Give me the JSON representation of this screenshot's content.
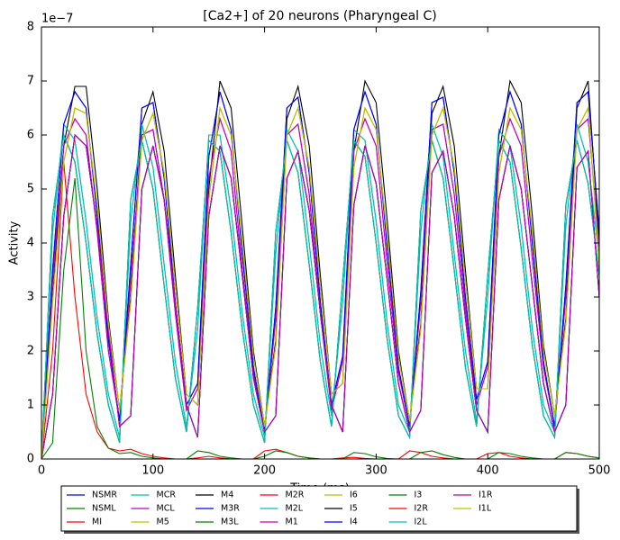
{
  "chart_data": {
    "type": "line",
    "title": "[Ca2+] of 20 neurons (Pharyngeal C)",
    "xlabel": "Time (ms)",
    "ylabel": "Activity",
    "y_offset_text": "1e−7",
    "xlim": [
      0,
      500
    ],
    "xticks": [
      0,
      100,
      200,
      300,
      400,
      500
    ],
    "ylim": [
      0,
      8
    ],
    "yticks": [
      0,
      1,
      2,
      3,
      4,
      5,
      6,
      7,
      8
    ],
    "legend": "lower center",
    "x": [
      0,
      10,
      20,
      30,
      40,
      50,
      60,
      70,
      80,
      90,
      100,
      110,
      120,
      130,
      140,
      150,
      160,
      170,
      180,
      190,
      200,
      210,
      220,
      230,
      240,
      250,
      260,
      270,
      280,
      290,
      300,
      310,
      320,
      330,
      340,
      350,
      360,
      370,
      380,
      390,
      400,
      410,
      420,
      430,
      440,
      450,
      460,
      470,
      480,
      490,
      500
    ],
    "series": [
      {
        "name": "NSMR",
        "color": "#0000ff",
        "values": [
          0,
          3.5,
          6.2,
          6.8,
          6.5,
          4.5,
          2.2,
          0.7,
          3.6,
          6.5,
          6.6,
          5.2,
          2.9,
          1.0,
          1.4,
          5.6,
          6.8,
          6.1,
          3.8,
          1.7,
          0.5,
          2.8,
          6.5,
          6.7,
          5.3,
          2.9,
          1.0,
          1.9,
          6.1,
          6.8,
          6.2,
          3.9,
          1.7,
          0.6,
          3.1,
          6.6,
          6.7,
          5.3,
          3.0,
          1.1,
          1.8,
          6.0,
          6.8,
          6.2,
          4.0,
          1.8,
          0.6,
          3.2,
          6.6,
          6.8,
          4.2
        ]
      },
      {
        "name": "NSML",
        "color": "#008000",
        "values": [
          0,
          4.5,
          6.0,
          5.5,
          4.0,
          2.3,
          1.0,
          0.3,
          4.8,
          5.9,
          5.0,
          3.2,
          1.5,
          0.5,
          2.8,
          5.9,
          5.7,
          4.2,
          2.4,
          1.0,
          0.3,
          4.2,
          5.9,
          5.3,
          3.6,
          1.8,
          0.6,
          3.3,
          5.9,
          5.6,
          4.0,
          2.2,
          0.8,
          0.4,
          4.6,
          5.9,
          5.2,
          3.5,
          1.7,
          0.6,
          3.4,
          5.9,
          5.5,
          3.9,
          2.1,
          0.8,
          0.4,
          4.7,
          5.9,
          5.1,
          3.4
        ]
      },
      {
        "name": "MI",
        "color": "#ff0000",
        "values": [
          0,
          2.0,
          5.5,
          3.0,
          1.2,
          0.5,
          0.2,
          0.15,
          0.18,
          0.1,
          0.05,
          0.02,
          0,
          0,
          0.02,
          0.05,
          0.02,
          0,
          0,
          0,
          0.15,
          0.18,
          0.12,
          0.05,
          0.02,
          0,
          0,
          0.02,
          0.03,
          0.01,
          0,
          0,
          0,
          0.15,
          0.12,
          0.05,
          0.02,
          0,
          0,
          0,
          0.1,
          0.12,
          0.05,
          0.02,
          0,
          0,
          0,
          0.12,
          0.1,
          0.05,
          0.02
        ]
      },
      {
        "name": "MCR",
        "color": "#00bfbf",
        "values": [
          0,
          4.2,
          6.2,
          5.9,
          4.4,
          2.6,
          1.2,
          0.4,
          4.4,
          6.2,
          5.4,
          3.6,
          1.8,
          0.6,
          2.4,
          6.0,
          6.0,
          4.6,
          2.7,
          1.2,
          0.4,
          3.8,
          6.1,
          5.7,
          4.0,
          2.1,
          0.8,
          2.9,
          6.1,
          5.9,
          4.4,
          2.5,
          1.0,
          0.5,
          4.2,
          6.2,
          5.6,
          3.8,
          2.0,
          0.7,
          3.0,
          6.1,
          5.8,
          4.3,
          2.4,
          1.0,
          0.5,
          4.3,
          6.2,
          5.5,
          3.7
        ]
      },
      {
        "name": "MCL",
        "color": "#bf00bf",
        "values": [
          0,
          3.3,
          5.8,
          6.3,
          6.0,
          4.2,
          2.0,
          0.7,
          3.3,
          6.0,
          6.1,
          4.8,
          2.7,
          0.9,
          1.3,
          5.2,
          6.3,
          5.7,
          3.5,
          1.6,
          0.5,
          2.6,
          6.0,
          6.2,
          4.9,
          2.7,
          0.9,
          1.8,
          5.7,
          6.3,
          5.8,
          3.6,
          1.6,
          0.6,
          2.9,
          6.1,
          6.2,
          4.9,
          2.8,
          1.0,
          1.7,
          5.6,
          6.3,
          5.8,
          3.7,
          1.7,
          0.6,
          3.0,
          6.1,
          6.3,
          3.9
        ]
      },
      {
        "name": "M5",
        "color": "#bfbf00",
        "values": [
          0,
          2.9,
          5.5,
          6.5,
          6.4,
          4.7,
          2.5,
          0.9,
          2.9,
          5.9,
          6.4,
          5.3,
          3.2,
          1.2,
          1.0,
          4.8,
          6.5,
          6.0,
          4.0,
          1.9,
          0.6,
          2.1,
          6.0,
          6.5,
          5.4,
          3.2,
          1.2,
          1.4,
          5.4,
          6.5,
          6.1,
          4.1,
          1.9,
          0.7,
          2.4,
          6.0,
          6.5,
          5.4,
          3.3,
          1.3,
          1.3,
          5.3,
          6.5,
          6.1,
          4.2,
          2.0,
          0.8,
          2.5,
          6.1,
          6.5,
          3.6
        ]
      },
      {
        "name": "M4",
        "color": "#000000",
        "values": [
          0,
          3.0,
          5.8,
          6.9,
          6.9,
          5.0,
          2.6,
          0.9,
          3.0,
          6.2,
          6.8,
          5.7,
          3.4,
          1.2,
          1.0,
          5.0,
          7.0,
          6.5,
          4.3,
          2.0,
          0.6,
          2.2,
          6.3,
          6.9,
          5.8,
          3.4,
          1.2,
          1.4,
          5.7,
          7.0,
          6.6,
          4.4,
          2.0,
          0.7,
          2.5,
          6.4,
          6.9,
          5.8,
          3.5,
          1.3,
          1.3,
          5.6,
          7.0,
          6.6,
          4.5,
          2.1,
          0.8,
          2.6,
          6.5,
          7.0,
          4.0
        ]
      },
      {
        "name": "M3R",
        "color": "#0000ff",
        "values": [
          0,
          1.2,
          4.5,
          6.0,
          5.8,
          4.3,
          2.4,
          0.6,
          0.8,
          5.0,
          5.8,
          4.8,
          2.9,
          1.0,
          0.4,
          4.5,
          5.8,
          5.2,
          3.4,
          1.5,
          0.5,
          0.8,
          5.2,
          5.7,
          4.6,
          2.7,
          1.0,
          0.5,
          4.7,
          5.8,
          5.1,
          3.3,
          1.4,
          0.5,
          0.9,
          5.3,
          5.7,
          4.5,
          2.6,
          0.9,
          0.5,
          4.8,
          5.8,
          5.0,
          3.2,
          1.4,
          0.5,
          1.0,
          5.4,
          5.7,
          3.0
        ]
      },
      {
        "name": "M3L",
        "color": "#008000",
        "values": [
          0,
          0.3,
          3.5,
          5.2,
          2.0,
          0.6,
          0.2,
          0.1,
          0.12,
          0.05,
          0.02,
          0,
          0,
          0,
          0.15,
          0.12,
          0.05,
          0.02,
          0,
          0,
          0.05,
          0.15,
          0.12,
          0.05,
          0.02,
          0,
          0,
          0,
          0.12,
          0.1,
          0.04,
          0.01,
          0,
          0,
          0.12,
          0.15,
          0.08,
          0.03,
          0,
          0,
          0,
          0.12,
          0.1,
          0.05,
          0.02,
          0,
          0,
          0.12,
          0.1,
          0.05,
          0.02
        ]
      },
      {
        "name": "M2R",
        "color": "#ff0000",
        "values": [
          0,
          0,
          0,
          0,
          0,
          0,
          0,
          0,
          0,
          0,
          0,
          0,
          0,
          0,
          0,
          0,
          0,
          0,
          0,
          0,
          0,
          0,
          0,
          0,
          0,
          0,
          0,
          0,
          0,
          0,
          0,
          0,
          0,
          0,
          0,
          0,
          0,
          0,
          0,
          0,
          0,
          0,
          0,
          0,
          0,
          0,
          0,
          0,
          0,
          0,
          0
        ]
      },
      {
        "name": "M2L",
        "color": "#00bfbf",
        "values": [
          0,
          4.2,
          6.2,
          5.9,
          4.4,
          2.6,
          1.2,
          0.4,
          4.4,
          6.2,
          5.4,
          3.6,
          1.8,
          0.6,
          2.4,
          6.0,
          6.0,
          4.6,
          2.7,
          1.2,
          0.4,
          3.8,
          6.1,
          5.7,
          4.0,
          2.1,
          0.8,
          2.9,
          6.1,
          5.9,
          4.4,
          2.5,
          1.0,
          0.5,
          4.2,
          6.2,
          5.6,
          3.8,
          2.0,
          0.7,
          3.0,
          6.1,
          5.8,
          4.3,
          2.4,
          1.0,
          0.5,
          4.3,
          6.2,
          5.5,
          3.7
        ]
      },
      {
        "name": "M1",
        "color": "#bf00bf",
        "values": [
          0,
          3.3,
          5.8,
          6.3,
          6.0,
          4.2,
          2.0,
          0.7,
          3.3,
          6.0,
          6.1,
          4.8,
          2.7,
          0.9,
          1.3,
          5.2,
          6.3,
          5.7,
          3.5,
          1.6,
          0.5,
          2.6,
          6.0,
          6.2,
          4.9,
          2.7,
          0.9,
          1.8,
          5.7,
          6.3,
          5.8,
          3.6,
          1.6,
          0.6,
          2.9,
          6.1,
          6.2,
          4.9,
          2.8,
          1.0,
          1.7,
          5.6,
          6.3,
          5.8,
          3.7,
          1.7,
          0.6,
          3.0,
          6.1,
          6.3,
          3.9
        ]
      },
      {
        "name": "I6",
        "color": "#bfbf00",
        "values": [
          0,
          2.9,
          5.5,
          6.5,
          6.4,
          4.7,
          2.5,
          0.9,
          2.9,
          5.9,
          6.4,
          5.3,
          3.2,
          1.2,
          1.0,
          4.8,
          6.5,
          6.0,
          4.0,
          1.9,
          0.6,
          2.1,
          6.0,
          6.5,
          5.4,
          3.2,
          1.2,
          1.4,
          5.4,
          6.5,
          6.1,
          4.1,
          1.9,
          0.7,
          2.4,
          6.0,
          6.5,
          5.4,
          3.3,
          1.3,
          1.3,
          5.3,
          6.5,
          6.1,
          4.2,
          2.0,
          0.8,
          2.5,
          6.1,
          6.5,
          3.6
        ]
      },
      {
        "name": "I5",
        "color": "#000000",
        "values": [
          0,
          1.2,
          4.5,
          6.0,
          5.8,
          4.3,
          2.4,
          0.6,
          0.8,
          5.0,
          5.8,
          4.8,
          2.9,
          1.0,
          0.4,
          4.5,
          5.8,
          5.2,
          3.4,
          1.5,
          0.5,
          0.8,
          5.2,
          5.7,
          4.6,
          2.7,
          1.0,
          0.5,
          4.7,
          5.8,
          5.1,
          3.3,
          1.4,
          0.5,
          0.9,
          5.3,
          5.7,
          4.5,
          2.6,
          0.9,
          0.5,
          4.8,
          5.8,
          5.0,
          3.2,
          1.4,
          0.5,
          1.0,
          5.4,
          5.7,
          3.0
        ]
      },
      {
        "name": "I4",
        "color": "#0000ff",
        "values": [
          0,
          3.5,
          6.2,
          6.8,
          6.5,
          4.5,
          2.2,
          0.7,
          3.6,
          6.5,
          6.6,
          5.2,
          2.9,
          1.0,
          1.4,
          5.6,
          6.8,
          6.1,
          3.8,
          1.7,
          0.5,
          2.8,
          6.5,
          6.7,
          5.3,
          2.9,
          1.0,
          1.9,
          6.1,
          6.8,
          6.2,
          3.9,
          1.7,
          0.6,
          3.1,
          6.6,
          6.7,
          5.3,
          3.0,
          1.1,
          1.8,
          6.0,
          6.8,
          6.2,
          4.0,
          1.8,
          0.6,
          3.2,
          6.6,
          6.8,
          4.2
        ]
      },
      {
        "name": "I3",
        "color": "#008000",
        "values": [
          0,
          4.5,
          6.0,
          5.5,
          4.0,
          2.3,
          1.0,
          0.3,
          4.8,
          5.9,
          5.0,
          3.2,
          1.5,
          0.5,
          2.8,
          5.9,
          5.7,
          4.2,
          2.4,
          1.0,
          0.3,
          4.2,
          5.9,
          5.3,
          3.6,
          1.8,
          0.6,
          3.3,
          5.9,
          5.6,
          4.0,
          2.2,
          0.8,
          0.4,
          4.6,
          5.9,
          5.2,
          3.5,
          1.7,
          0.6,
          3.4,
          5.9,
          5.5,
          3.9,
          2.1,
          0.8,
          0.4,
          4.7,
          5.9,
          5.1,
          3.4
        ]
      },
      {
        "name": "I2R",
        "color": "#ff0000",
        "values": [
          0,
          0,
          0,
          0,
          0,
          0,
          0,
          0,
          0,
          0,
          0,
          0,
          0,
          0,
          0,
          0,
          0,
          0,
          0,
          0,
          0,
          0,
          0,
          0,
          0,
          0,
          0,
          0,
          0,
          0,
          0,
          0,
          0,
          0,
          0,
          0,
          0,
          0,
          0,
          0,
          0,
          0,
          0,
          0,
          0,
          0,
          0,
          0,
          0,
          0,
          0
        ]
      },
      {
        "name": "I2L",
        "color": "#00bfbf",
        "values": [
          0,
          4.5,
          6.0,
          5.5,
          4.0,
          2.3,
          1.0,
          0.3,
          4.8,
          5.9,
          5.0,
          3.2,
          1.5,
          0.5,
          2.8,
          5.9,
          5.7,
          4.2,
          2.4,
          1.0,
          0.3,
          4.2,
          5.9,
          5.3,
          3.6,
          1.8,
          0.6,
          3.3,
          5.9,
          5.6,
          4.0,
          2.2,
          0.8,
          0.4,
          4.6,
          5.9,
          5.2,
          3.5,
          1.7,
          0.6,
          3.4,
          5.9,
          5.5,
          3.9,
          2.1,
          0.8,
          0.4,
          4.7,
          5.9,
          5.1,
          3.4
        ]
      },
      {
        "name": "I1R",
        "color": "#bf00bf",
        "values": [
          0,
          1.2,
          4.5,
          6.0,
          5.8,
          4.3,
          2.4,
          0.6,
          0.8,
          5.0,
          5.8,
          4.8,
          2.9,
          1.0,
          0.4,
          4.5,
          5.8,
          5.2,
          3.4,
          1.5,
          0.5,
          0.8,
          5.2,
          5.7,
          4.6,
          2.7,
          1.0,
          0.5,
          4.7,
          5.8,
          5.1,
          3.3,
          1.4,
          0.5,
          0.9,
          5.3,
          5.7,
          4.5,
          2.6,
          0.9,
          0.5,
          4.8,
          5.8,
          5.0,
          3.2,
          1.4,
          0.5,
          1.0,
          5.4,
          5.7,
          3.0
        ]
      },
      {
        "name": "I1L",
        "color": "#bfbf00",
        "values": [
          0,
          2.9,
          5.5,
          6.5,
          6.4,
          4.7,
          2.5,
          0.9,
          2.9,
          5.9,
          6.4,
          5.3,
          3.2,
          1.2,
          1.0,
          4.8,
          6.5,
          6.0,
          4.0,
          1.9,
          0.6,
          2.1,
          6.0,
          6.5,
          5.4,
          3.2,
          1.2,
          1.4,
          5.4,
          6.5,
          6.1,
          4.1,
          1.9,
          0.7,
          2.4,
          6.0,
          6.5,
          5.4,
          3.3,
          1.3,
          1.3,
          5.3,
          6.5,
          6.1,
          4.2,
          2.0,
          0.8,
          2.5,
          6.1,
          6.5,
          3.6
        ]
      }
    ]
  }
}
